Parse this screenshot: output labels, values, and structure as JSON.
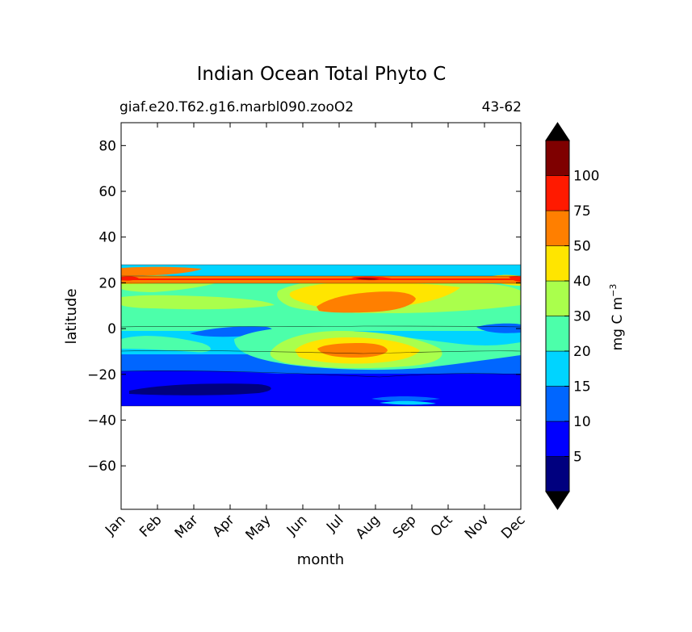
{
  "chart_data": {
    "type": "contourf",
    "title": "Indian Ocean Total Phyto C",
    "subtitle_left": "giaf.e20.T62.g16.marbl090.zooO2",
    "subtitle_right": "43-62",
    "xlabel": "month",
    "ylabel": "latitude",
    "x_categories": [
      "Jan",
      "Feb",
      "Mar",
      "Apr",
      "May",
      "Jun",
      "Jul",
      "Aug",
      "Sep",
      "Oct",
      "Nov",
      "Dec"
    ],
    "ylim": [
      -79,
      90
    ],
    "yticks": [
      80,
      60,
      40,
      20,
      0,
      -20,
      -40,
      -60
    ],
    "yticklabels": [
      "80",
      "60",
      "40",
      "20",
      "0",
      "−20",
      "−40",
      "−60"
    ],
    "data_lat_range": [
      -34,
      27
    ],
    "grid": false,
    "colorbar": {
      "label_main": "mg C m",
      "label_exp": "−3",
      "levels": [
        0,
        5,
        10,
        15,
        20,
        30,
        40,
        50,
        75,
        100,
        150
      ],
      "level_labels": [
        "5",
        "10",
        "15",
        "20",
        "30",
        "40",
        "50",
        "75",
        "100"
      ],
      "colors": [
        "#00007f",
        "#0000ff",
        "#0066ff",
        "#00d4ff",
        "#4cffaa",
        "#aaff4c",
        "#ffe500",
        "#ff7f00",
        "#ff1a00",
        "#7f0000"
      ],
      "extend": "both",
      "under_color": "#000000",
      "over_color": "#000000"
    },
    "regions": [
      {
        "band": "0-5",
        "lat": [
          -29,
          -24
        ],
        "months": [
          1.5,
          4.5
        ],
        "note": "darkest blue patch"
      },
      {
        "band": "5-10",
        "lat": [
          -34,
          -20
        ],
        "months": [
          0,
          11
        ]
      },
      {
        "band": "10-15",
        "lat": [
          -20,
          -10
        ],
        "months": [
          0,
          11
        ]
      },
      {
        "band": "15-20",
        "lat": [
          -10,
          0
        ],
        "months": [
          0,
          11
        ]
      },
      {
        "band": "20-30",
        "lat": [
          0,
          27
        ],
        "months": [
          0,
          11
        ]
      },
      {
        "band": "30-40",
        "lat": [
          -12,
          18
        ],
        "months": [
          4,
          9
        ]
      },
      {
        "band": "40-50",
        "lat": [
          -12,
          22
        ],
        "months": [
          5,
          8.5
        ]
      },
      {
        "band": "50-75",
        "lat": [
          -12,
          25
        ],
        "months": [
          0,
          11
        ],
        "note": "patches near 10N Jul-Aug, 9S Jul-Aug, 22-25N Jan-Mar"
      },
      {
        "band": "75-100",
        "lat": [
          21,
          22
        ],
        "months": [
          0,
          11
        ],
        "note": "thin band near 21N"
      }
    ]
  }
}
